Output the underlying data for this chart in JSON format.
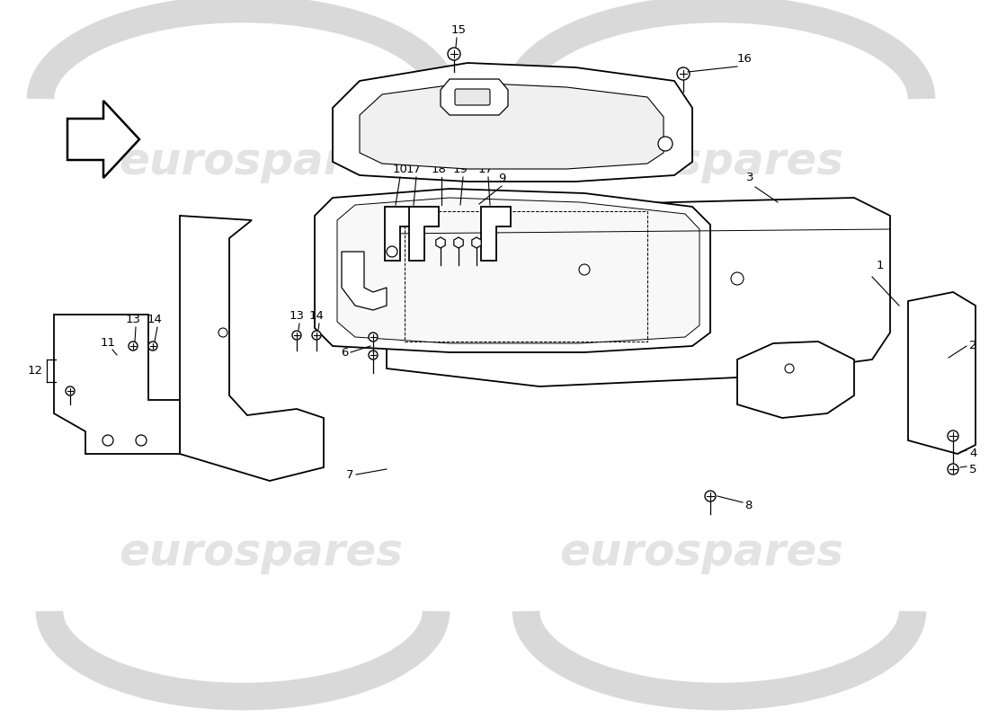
{
  "background_color": "#ffffff",
  "watermark_text": "eurospares",
  "watermark_color": "#c8c8c8",
  "line_color": "#000000",
  "label_color": "#000000",
  "figsize": [
    11.0,
    8.0
  ],
  "dpi": 100,
  "part_labels": {
    "1": [
      990,
      490,
      960,
      470
    ],
    "2": [
      1075,
      415,
      1055,
      400
    ],
    "3": [
      840,
      590,
      810,
      575
    ],
    "4": [
      1075,
      310,
      1050,
      308
    ],
    "5": [
      1075,
      295,
      1050,
      290
    ],
    "6": [
      390,
      390,
      415,
      400
    ],
    "7": [
      395,
      270,
      450,
      280
    ],
    "8": [
      830,
      235,
      790,
      248
    ],
    "9": [
      555,
      590,
      530,
      565
    ],
    "10": [
      450,
      600,
      448,
      572
    ],
    "11": [
      115,
      410,
      130,
      405
    ],
    "13a": [
      148,
      430,
      150,
      415
    ],
    "14a": [
      170,
      430,
      172,
      415
    ],
    "13b": [
      330,
      435,
      335,
      418
    ],
    "14b": [
      352,
      435,
      355,
      418
    ],
    "15": [
      500,
      135,
      500,
      160
    ],
    "16": [
      820,
      165,
      800,
      190
    ],
    "17a": [
      460,
      595,
      452,
      572
    ],
    "17b": [
      530,
      595,
      535,
      572
    ],
    "18": [
      488,
      595,
      485,
      572
    ],
    "19": [
      510,
      595,
      510,
      572
    ]
  }
}
